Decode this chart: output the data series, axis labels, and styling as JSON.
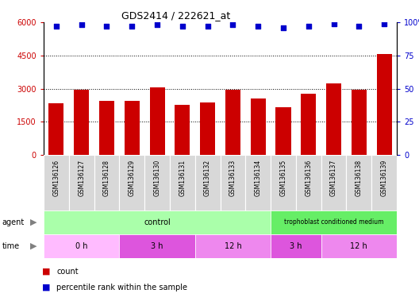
{
  "title": "GDS2414 / 222621_at",
  "samples": [
    "GSM136126",
    "GSM136127",
    "GSM136128",
    "GSM136129",
    "GSM136130",
    "GSM136131",
    "GSM136132",
    "GSM136133",
    "GSM136134",
    "GSM136135",
    "GSM136136",
    "GSM136137",
    "GSM136138",
    "GSM136139"
  ],
  "counts": [
    2350,
    2960,
    2450,
    2450,
    3050,
    2280,
    2360,
    2960,
    2550,
    2150,
    2750,
    3250,
    2960,
    4560
  ],
  "percentile_ranks": [
    97,
    98,
    97,
    97,
    98,
    97,
    97,
    98,
    97,
    96,
    97,
    99,
    97,
    99
  ],
  "bar_color": "#cc0000",
  "dot_color": "#0000cc",
  "ylim_left": [
    0,
    6000
  ],
  "ylim_right": [
    0,
    100
  ],
  "yticks_left": [
    0,
    1500,
    3000,
    4500,
    6000
  ],
  "yticks_right": [
    0,
    25,
    50,
    75,
    100
  ],
  "tick_box_color": "#d3d3d3",
  "agent_control_color": "#aaffaa",
  "agent_trophoblast_color": "#66dd66",
  "time_colors_alt": [
    "#ffaaff",
    "#dd66dd",
    "#ffaaff",
    "#dd66dd",
    "#ffaaff"
  ],
  "legend_count_color": "#cc0000",
  "legend_dot_color": "#0000cc"
}
